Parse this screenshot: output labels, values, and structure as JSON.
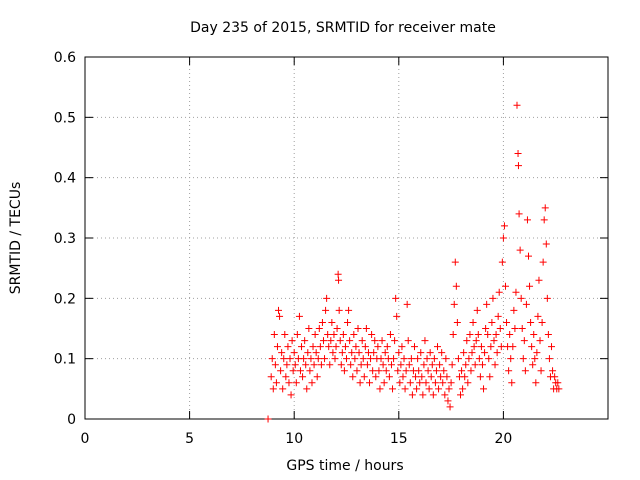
{
  "chart_data": {
    "type": "scatter",
    "title": "Day 235 of 2015, SRMTID for receiver mate",
    "xlabel": "GPS time / hours",
    "ylabel": "SRMTID / TECUs",
    "xlim": [
      0,
      25
    ],
    "ylim": [
      0,
      0.6
    ],
    "x_ticks": [
      0,
      5,
      10,
      15,
      20
    ],
    "y_ticks": [
      0,
      0.1,
      0.2,
      0.3,
      0.4,
      0.5,
      0.6
    ],
    "x_tick_labels": [
      "0",
      "5",
      "10",
      "15",
      "20"
    ],
    "y_tick_labels": [
      "0",
      "0.1",
      "0.2",
      "0.3",
      "0.4",
      "0.5",
      "0.6"
    ],
    "grid": true,
    "marker": "+",
    "color": "#ff0000",
    "series": [
      {
        "points": [
          [
            8.75,
            0.0
          ],
          [
            8.9,
            0.07
          ],
          [
            8.95,
            0.1
          ],
          [
            9.0,
            0.05
          ],
          [
            9.05,
            0.14
          ],
          [
            9.1,
            0.09
          ],
          [
            9.15,
            0.06
          ],
          [
            9.2,
            0.12
          ],
          [
            9.25,
            0.18
          ],
          [
            9.3,
            0.17
          ],
          [
            9.35,
            0.08
          ],
          [
            9.4,
            0.11
          ],
          [
            9.45,
            0.05
          ],
          [
            9.5,
            0.1
          ],
          [
            9.55,
            0.14
          ],
          [
            9.6,
            0.07
          ],
          [
            9.65,
            0.09
          ],
          [
            9.7,
            0.12
          ],
          [
            9.75,
            0.06
          ],
          [
            9.8,
            0.1
          ],
          [
            9.85,
            0.04
          ],
          [
            9.9,
            0.13
          ],
          [
            9.95,
            0.08
          ],
          [
            10.0,
            0.11
          ],
          [
            10.05,
            0.09
          ],
          [
            10.1,
            0.06
          ],
          [
            10.15,
            0.14
          ],
          [
            10.2,
            0.1
          ],
          [
            10.25,
            0.17
          ],
          [
            10.3,
            0.08
          ],
          [
            10.35,
            0.12
          ],
          [
            10.4,
            0.07
          ],
          [
            10.45,
            0.1
          ],
          [
            10.5,
            0.13
          ],
          [
            10.55,
            0.09
          ],
          [
            10.6,
            0.05
          ],
          [
            10.65,
            0.11
          ],
          [
            10.7,
            0.15
          ],
          [
            10.75,
            0.08
          ],
          [
            10.8,
            0.1
          ],
          [
            10.85,
            0.06
          ],
          [
            10.9,
            0.12
          ],
          [
            10.95,
            0.09
          ],
          [
            11.0,
            0.14
          ],
          [
            11.05,
            0.11
          ],
          [
            11.1,
            0.07
          ],
          [
            11.15,
            0.1
          ],
          [
            11.2,
            0.15
          ],
          [
            11.25,
            0.12
          ],
          [
            11.3,
            0.09
          ],
          [
            11.35,
            0.16
          ],
          [
            11.4,
            0.13
          ],
          [
            11.45,
            0.1
          ],
          [
            11.5,
            0.18
          ],
          [
            11.55,
            0.2
          ],
          [
            11.6,
            0.14
          ],
          [
            11.65,
            0.12
          ],
          [
            11.7,
            0.09
          ],
          [
            11.75,
            0.13
          ],
          [
            11.8,
            0.16
          ],
          [
            11.85,
            0.11
          ],
          [
            11.9,
            0.14
          ],
          [
            11.95,
            0.1
          ],
          [
            12.0,
            0.12
          ],
          [
            12.05,
            0.15
          ],
          [
            12.1,
            0.24
          ],
          [
            12.12,
            0.23
          ],
          [
            12.15,
            0.18
          ],
          [
            12.2,
            0.13
          ],
          [
            12.25,
            0.09
          ],
          [
            12.3,
            0.11
          ],
          [
            12.35,
            0.14
          ],
          [
            12.4,
            0.08
          ],
          [
            12.45,
            0.12
          ],
          [
            12.5,
            0.1
          ],
          [
            12.55,
            0.16
          ],
          [
            12.6,
            0.18
          ],
          [
            12.65,
            0.13
          ],
          [
            12.7,
            0.09
          ],
          [
            12.75,
            0.11
          ],
          [
            12.8,
            0.07
          ],
          [
            12.85,
            0.14
          ],
          [
            12.9,
            0.1
          ],
          [
            12.95,
            0.12
          ],
          [
            13.0,
            0.08
          ],
          [
            13.05,
            0.15
          ],
          [
            13.1,
            0.11
          ],
          [
            13.15,
            0.06
          ],
          [
            13.2,
            0.09
          ],
          [
            13.25,
            0.13
          ],
          [
            13.3,
            0.1
          ],
          [
            13.35,
            0.07
          ],
          [
            13.4,
            0.12
          ],
          [
            13.45,
            0.15
          ],
          [
            13.5,
            0.09
          ],
          [
            13.55,
            0.11
          ],
          [
            13.6,
            0.06
          ],
          [
            13.65,
            0.1
          ],
          [
            13.7,
            0.14
          ],
          [
            13.75,
            0.08
          ],
          [
            13.8,
            0.11
          ],
          [
            13.85,
            0.13
          ],
          [
            13.9,
            0.07
          ],
          [
            13.95,
            0.1
          ],
          [
            14.0,
            0.12
          ],
          [
            14.05,
            0.08
          ],
          [
            14.1,
            0.05
          ],
          [
            14.15,
            0.1
          ],
          [
            14.2,
            0.13
          ],
          [
            14.25,
            0.09
          ],
          [
            14.3,
            0.06
          ],
          [
            14.35,
            0.11
          ],
          [
            14.4,
            0.08
          ],
          [
            14.45,
            0.12
          ],
          [
            14.5,
            0.1
          ],
          [
            14.55,
            0.07
          ],
          [
            14.6,
            0.14
          ],
          [
            14.65,
            0.09
          ],
          [
            14.7,
            0.05
          ],
          [
            14.75,
            0.1
          ],
          [
            14.8,
            0.13
          ],
          [
            14.85,
            0.2
          ],
          [
            14.9,
            0.17
          ],
          [
            14.95,
            0.08
          ],
          [
            15.0,
            0.11
          ],
          [
            15.05,
            0.06
          ],
          [
            15.1,
            0.09
          ],
          [
            15.15,
            0.12
          ],
          [
            15.2,
            0.07
          ],
          [
            15.25,
            0.1
          ],
          [
            15.3,
            0.05
          ],
          [
            15.35,
            0.08
          ],
          [
            15.4,
            0.19
          ],
          [
            15.45,
            0.13
          ],
          [
            15.5,
            0.09
          ],
          [
            15.55,
            0.06
          ],
          [
            15.6,
            0.1
          ],
          [
            15.65,
            0.04
          ],
          [
            15.7,
            0.08
          ],
          [
            15.75,
            0.12
          ],
          [
            15.8,
            0.07
          ],
          [
            15.85,
            0.05
          ],
          [
            15.9,
            0.1
          ],
          [
            15.95,
            0.08
          ],
          [
            16.0,
            0.06
          ],
          [
            16.05,
            0.11
          ],
          [
            16.1,
            0.07
          ],
          [
            16.15,
            0.04
          ],
          [
            16.2,
            0.09
          ],
          [
            16.25,
            0.13
          ],
          [
            16.3,
            0.06
          ],
          [
            16.35,
            0.1
          ],
          [
            16.4,
            0.08
          ],
          [
            16.45,
            0.05
          ],
          [
            16.5,
            0.11
          ],
          [
            16.55,
            0.07
          ],
          [
            16.6,
            0.09
          ],
          [
            16.65,
            0.04
          ],
          [
            16.7,
            0.1
          ],
          [
            16.75,
            0.06
          ],
          [
            16.8,
            0.08
          ],
          [
            16.85,
            0.12
          ],
          [
            16.9,
            0.05
          ],
          [
            16.95,
            0.09
          ],
          [
            17.0,
            0.07
          ],
          [
            17.05,
            0.11
          ],
          [
            17.1,
            0.06
          ],
          [
            17.15,
            0.08
          ],
          [
            17.2,
            0.04
          ],
          [
            17.25,
            0.1
          ],
          [
            17.3,
            0.07
          ],
          [
            17.35,
            0.03
          ],
          [
            17.4,
            0.05
          ],
          [
            17.45,
            0.02
          ],
          [
            17.5,
            0.06
          ],
          [
            17.55,
            0.09
          ],
          [
            17.6,
            0.14
          ],
          [
            17.65,
            0.19
          ],
          [
            17.7,
            0.26
          ],
          [
            17.75,
            0.22
          ],
          [
            17.8,
            0.16
          ],
          [
            17.85,
            0.1
          ],
          [
            17.9,
            0.07
          ],
          [
            17.95,
            0.04
          ],
          [
            18.0,
            0.08
          ],
          [
            18.05,
            0.05
          ],
          [
            18.1,
            0.11
          ],
          [
            18.15,
            0.07
          ],
          [
            18.2,
            0.09
          ],
          [
            18.25,
            0.13
          ],
          [
            18.3,
            0.06
          ],
          [
            18.35,
            0.1
          ],
          [
            18.4,
            0.14
          ],
          [
            18.45,
            0.08
          ],
          [
            18.5,
            0.11
          ],
          [
            18.55,
            0.16
          ],
          [
            18.6,
            0.12
          ],
          [
            18.65,
            0.09
          ],
          [
            18.7,
            0.13
          ],
          [
            18.75,
            0.18
          ],
          [
            18.8,
            0.14
          ],
          [
            18.85,
            0.1
          ],
          [
            18.9,
            0.07
          ],
          [
            18.95,
            0.12
          ],
          [
            19.0,
            0.09
          ],
          [
            19.05,
            0.05
          ],
          [
            19.1,
            0.11
          ],
          [
            19.15,
            0.15
          ],
          [
            19.2,
            0.19
          ],
          [
            19.25,
            0.14
          ],
          [
            19.3,
            0.1
          ],
          [
            19.35,
            0.07
          ],
          [
            19.4,
            0.12
          ],
          [
            19.45,
            0.16
          ],
          [
            19.5,
            0.2
          ],
          [
            19.55,
            0.13
          ],
          [
            19.6,
            0.09
          ],
          [
            19.65,
            0.14
          ],
          [
            19.7,
            0.11
          ],
          [
            19.75,
            0.17
          ],
          [
            19.8,
            0.21
          ],
          [
            19.85,
            0.15
          ],
          [
            19.9,
            0.12
          ],
          [
            19.95,
            0.26
          ],
          [
            20.0,
            0.3
          ],
          [
            20.05,
            0.32
          ],
          [
            20.1,
            0.22
          ],
          [
            20.15,
            0.16
          ],
          [
            20.2,
            0.12
          ],
          [
            20.25,
            0.08
          ],
          [
            20.3,
            0.14
          ],
          [
            20.35,
            0.1
          ],
          [
            20.4,
            0.06
          ],
          [
            20.45,
            0.12
          ],
          [
            20.5,
            0.18
          ],
          [
            20.55,
            0.15
          ],
          [
            20.6,
            0.21
          ],
          [
            20.65,
            0.52
          ],
          [
            20.7,
            0.44
          ],
          [
            20.72,
            0.42
          ],
          [
            20.75,
            0.34
          ],
          [
            20.8,
            0.28
          ],
          [
            20.85,
            0.2
          ],
          [
            20.9,
            0.15
          ],
          [
            20.95,
            0.1
          ],
          [
            21.0,
            0.13
          ],
          [
            21.05,
            0.08
          ],
          [
            21.1,
            0.19
          ],
          [
            21.15,
            0.33
          ],
          [
            21.2,
            0.27
          ],
          [
            21.25,
            0.22
          ],
          [
            21.3,
            0.16
          ],
          [
            21.35,
            0.12
          ],
          [
            21.4,
            0.09
          ],
          [
            21.45,
            0.14
          ],
          [
            21.5,
            0.1
          ],
          [
            21.55,
            0.06
          ],
          [
            21.6,
            0.11
          ],
          [
            21.65,
            0.17
          ],
          [
            21.7,
            0.23
          ],
          [
            21.75,
            0.13
          ],
          [
            21.8,
            0.08
          ],
          [
            21.85,
            0.16
          ],
          [
            21.9,
            0.26
          ],
          [
            21.95,
            0.33
          ],
          [
            22.0,
            0.35
          ],
          [
            22.05,
            0.29
          ],
          [
            22.1,
            0.2
          ],
          [
            22.15,
            0.14
          ],
          [
            22.2,
            0.1
          ],
          [
            22.25,
            0.07
          ],
          [
            22.3,
            0.12
          ],
          [
            22.35,
            0.08
          ],
          [
            22.4,
            0.05
          ],
          [
            22.45,
            0.07
          ],
          [
            22.5,
            0.06
          ],
          [
            22.55,
            0.05
          ],
          [
            22.6,
            0.06
          ],
          [
            22.65,
            0.05
          ]
        ]
      }
    ]
  }
}
